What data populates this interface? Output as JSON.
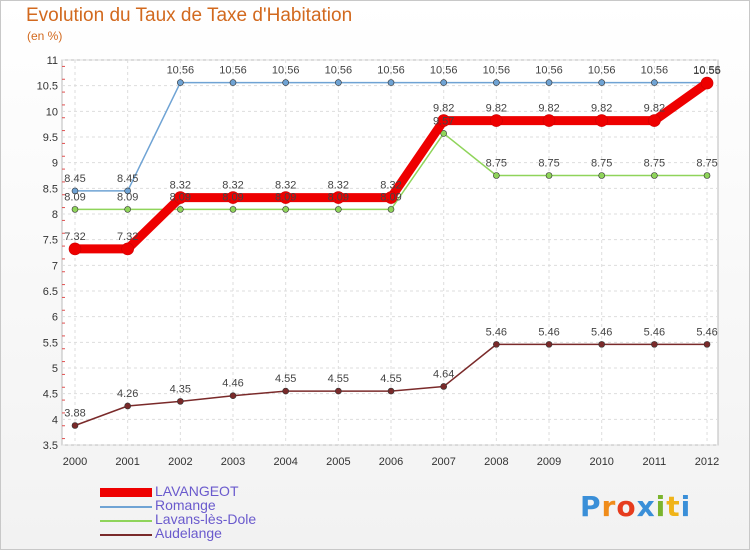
{
  "header": {
    "title": "Evolution du Taux de Taxe d'Habitation",
    "subtitle": "(en %)"
  },
  "logo": {
    "letters": [
      "P",
      "r",
      "o",
      "x",
      "i",
      "t",
      "i"
    ]
  },
  "chart_data": {
    "type": "line",
    "x": [
      "2000",
      "2001",
      "2002",
      "2003",
      "2004",
      "2005",
      "2006",
      "2007",
      "2008",
      "2009",
      "2010",
      "2011",
      "2012"
    ],
    "ylim": [
      3.5,
      11
    ],
    "yticks": [
      "3.5",
      "4",
      "4.5",
      "5",
      "5.5",
      "6",
      "6.5",
      "7",
      "7.5",
      "8",
      "8.5",
      "9",
      "9.5",
      "10",
      "10.5",
      "11"
    ],
    "legend_position": "bottom-left",
    "series": [
      {
        "name": "LAVANGEOT",
        "color": "#ee0000",
        "values": [
          7.32,
          7.32,
          8.32,
          8.32,
          8.32,
          8.32,
          8.32,
          9.82,
          9.82,
          9.82,
          9.82,
          9.82,
          10.55
        ],
        "labels": [
          "7.32",
          "7.32",
          "8.32",
          "8.32",
          "8.32",
          "8.32",
          "8.32",
          "9.82",
          "9.82",
          "9.82",
          "9.82",
          "9.82",
          "10.55"
        ]
      },
      {
        "name": "Romange",
        "color": "#6fa3d4",
        "values": [
          8.45,
          8.45,
          10.56,
          10.56,
          10.56,
          10.56,
          10.56,
          10.56,
          10.56,
          10.56,
          10.56,
          10.56,
          10.56
        ],
        "labels": [
          "8.45",
          "8.45",
          "10.56",
          "10.56",
          "10.56",
          "10.56",
          "10.56",
          "10.56",
          "10.56",
          "10.56",
          "10.56",
          "10.56",
          "10.56"
        ]
      },
      {
        "name": "Lavans-lès-Dole",
        "color": "#8fd45a",
        "values": [
          8.09,
          8.09,
          8.09,
          8.09,
          8.09,
          8.09,
          8.09,
          9.57,
          8.75,
          8.75,
          8.75,
          8.75,
          8.75
        ],
        "labels": [
          "8.09",
          "8.09",
          "8.09",
          "8.09",
          "8.09",
          "8.09",
          "8.09",
          "9.57",
          "8.75",
          "8.75",
          "8.75",
          "8.75",
          "8.75"
        ]
      },
      {
        "name": "Audelange",
        "color": "#7a2a2a",
        "values": [
          3.88,
          4.26,
          4.35,
          4.46,
          4.55,
          4.55,
          4.55,
          4.64,
          5.46,
          5.46,
          5.46,
          5.46,
          5.46
        ],
        "labels": [
          "3.88",
          "4.26",
          "4.35",
          "4.46",
          "4.55",
          "4.55",
          "4.55",
          "4.64",
          "5.46",
          "5.46",
          "5.46",
          "5.46",
          "5.46"
        ]
      }
    ]
  }
}
